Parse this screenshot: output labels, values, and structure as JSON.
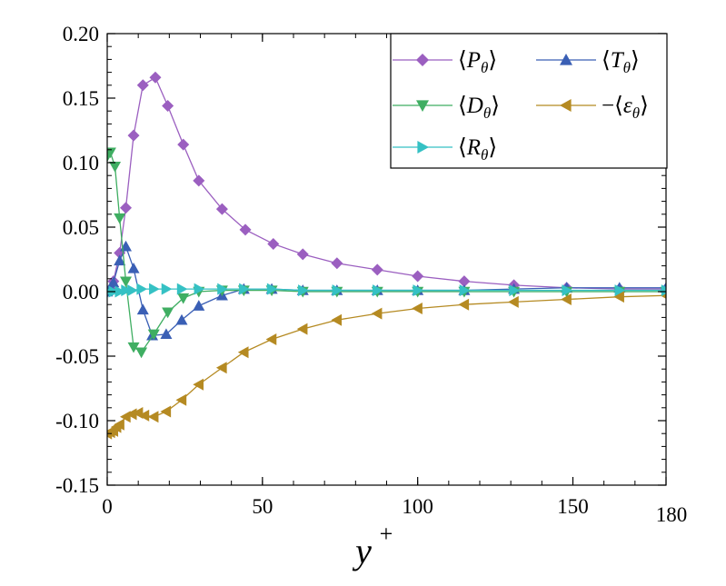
{
  "chart_data": {
    "type": "line",
    "xlabel": "y",
    "xlabel_superscript": "+",
    "ylabel": "",
    "xlim": [
      0,
      180
    ],
    "ylim": [
      -0.15,
      0.2
    ],
    "x_ticks": [
      0,
      50,
      100,
      150,
      180
    ],
    "x_tick_labels": [
      "0",
      "50",
      "100",
      "150",
      "180"
    ],
    "y_ticks": [
      -0.15,
      -0.1,
      -0.05,
      0.0,
      0.05,
      0.1,
      0.15,
      0.2
    ],
    "y_tick_labels": [
      "-0.15",
      "-0.10",
      "-0.05",
      "0.00",
      "0.05",
      "0.10",
      "0.15",
      "0.20"
    ],
    "grid": false,
    "legend_position": "top-right",
    "series": [
      {
        "name": "⟨P_θ⟩",
        "label_letter": "P",
        "label_sub": "θ",
        "label_prefix": "",
        "color": "#9b5fc0",
        "marker": "diamond",
        "x": [
          0,
          1,
          2,
          4,
          6,
          8.5,
          11.5,
          15.5,
          19.5,
          24.5,
          29.5,
          37,
          44.5,
          53.5,
          63,
          74,
          87,
          100,
          115,
          131,
          148,
          165,
          180
        ],
        "y": [
          0.0,
          0.002,
          0.008,
          0.03,
          0.065,
          0.121,
          0.16,
          0.166,
          0.144,
          0.114,
          0.086,
          0.064,
          0.048,
          0.037,
          0.029,
          0.022,
          0.017,
          0.012,
          0.008,
          0.005,
          0.003,
          0.002,
          0.002
        ]
      },
      {
        "name": "⟨T_θ⟩",
        "label_letter": "T",
        "label_sub": "θ",
        "label_prefix": "",
        "color": "#3a5fb5",
        "marker": "triangle-up",
        "x": [
          0,
          1,
          2,
          4,
          6,
          8.5,
          11.5,
          14.5,
          19,
          24,
          29.5,
          37,
          44,
          53,
          63,
          74,
          87,
          100,
          115,
          131,
          148,
          165,
          180
        ],
        "y": [
          0.0,
          0.003,
          0.007,
          0.024,
          0.035,
          0.018,
          -0.014,
          -0.034,
          -0.033,
          -0.022,
          -0.011,
          -0.003,
          0.002,
          0.002,
          0.001,
          0.001,
          0.001,
          0.001,
          0.001,
          0.002,
          0.003,
          0.003,
          0.003
        ]
      },
      {
        "name": "⟨D_θ⟩",
        "label_letter": "D",
        "label_sub": "θ",
        "label_prefix": "",
        "color": "#3fae62",
        "marker": "triangle-down",
        "x": [
          0,
          1,
          2.5,
          4,
          6,
          8.5,
          11,
          15,
          19.5,
          24.5,
          29.5,
          37,
          44,
          53,
          63,
          74,
          87,
          100,
          115,
          131,
          148,
          165,
          180
        ],
        "y": [
          0.105,
          0.108,
          0.097,
          0.057,
          0.008,
          -0.043,
          -0.047,
          -0.033,
          -0.016,
          -0.005,
          0.0,
          0.001,
          0.001,
          0.001,
          0.0,
          0.0,
          0.0,
          0.0,
          0.0,
          0.0,
          0.0,
          0.0,
          0.0
        ]
      },
      {
        "name": "−⟨ε_θ⟩",
        "label_letter": "ε",
        "label_sub": "θ",
        "label_prefix": "−",
        "color": "#b58a22",
        "marker": "triangle-left",
        "x": [
          0,
          1,
          2,
          3,
          4,
          6,
          8,
          10,
          12,
          15,
          19,
          24,
          29.5,
          37,
          44,
          53,
          63,
          74,
          87,
          100,
          115,
          131,
          148,
          165,
          180
        ],
        "y": [
          -0.11,
          -0.109,
          -0.108,
          -0.105,
          -0.103,
          -0.097,
          -0.095,
          -0.094,
          -0.096,
          -0.097,
          -0.093,
          -0.084,
          -0.072,
          -0.059,
          -0.047,
          -0.037,
          -0.029,
          -0.022,
          -0.017,
          -0.013,
          -0.01,
          -0.008,
          -0.006,
          -0.004,
          -0.003
        ]
      },
      {
        "name": "⟨R_θ⟩",
        "label_letter": "R",
        "label_sub": "θ",
        "label_prefix": "",
        "color": "#35c1c4",
        "marker": "triangle-right",
        "x": [
          0,
          2,
          4,
          6,
          8,
          11,
          15,
          19,
          24,
          29.5,
          37,
          44,
          53,
          63,
          74,
          87,
          100,
          115,
          131,
          148,
          165,
          180
        ],
        "y": [
          0.0,
          0.0,
          0.0,
          0.001,
          0.001,
          0.002,
          0.002,
          0.002,
          0.002,
          0.002,
          0.002,
          0.002,
          0.002,
          0.001,
          0.001,
          0.001,
          0.001,
          0.001,
          0.001,
          0.001,
          0.001,
          0.001
        ]
      }
    ],
    "legend_order": [
      0,
      1,
      2,
      3,
      4
    ]
  }
}
